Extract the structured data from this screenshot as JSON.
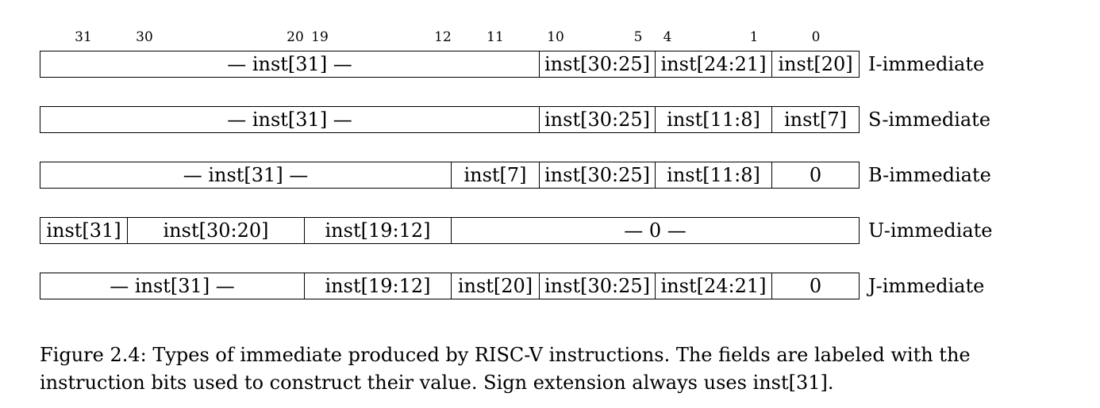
{
  "bit_numbers": [
    "31",
    "30",
    "20",
    "19",
    "12",
    "11",
    "10",
    "5",
    "4",
    "1",
    "0"
  ],
  "rows": [
    {
      "name": "i-immediate",
      "label": "I-immediate",
      "fields": [
        {
          "text": "— inst[31] —",
          "from": 31,
          "to": 11
        },
        {
          "text": "inst[30:25]",
          "from": 10,
          "to": 5
        },
        {
          "text": "inst[24:21]",
          "from": 4,
          "to": 1
        },
        {
          "text": "inst[20]",
          "from": 0,
          "to": 0
        }
      ]
    },
    {
      "name": "s-immediate",
      "label": "S-immediate",
      "fields": [
        {
          "text": "— inst[31] —",
          "from": 31,
          "to": 11
        },
        {
          "text": "inst[30:25]",
          "from": 10,
          "to": 5
        },
        {
          "text": "inst[11:8]",
          "from": 4,
          "to": 1
        },
        {
          "text": "inst[7]",
          "from": 0,
          "to": 0
        }
      ]
    },
    {
      "name": "b-immediate",
      "label": "B-immediate",
      "fields": [
        {
          "text": "— inst[31] —",
          "from": 31,
          "to": 12
        },
        {
          "text": "inst[7]",
          "from": 11,
          "to": 11
        },
        {
          "text": "inst[30:25]",
          "from": 10,
          "to": 5
        },
        {
          "text": "inst[11:8]",
          "from": 4,
          "to": 1
        },
        {
          "text": "0",
          "from": 0,
          "to": 0
        }
      ]
    },
    {
      "name": "u-immediate",
      "label": "U-immediate",
      "fields": [
        {
          "text": "inst[31]",
          "from": 31,
          "to": 31
        },
        {
          "text": "inst[30:20]",
          "from": 30,
          "to": 20
        },
        {
          "text": "inst[19:12]",
          "from": 19,
          "to": 12
        },
        {
          "text": "— 0 —",
          "from": 11,
          "to": 0
        }
      ]
    },
    {
      "name": "j-immediate",
      "label": "J-immediate",
      "fields": [
        {
          "text": "— inst[31] —",
          "from": 31,
          "to": 20
        },
        {
          "text": "inst[19:12]",
          "from": 19,
          "to": 12
        },
        {
          "text": "inst[20]",
          "from": 11,
          "to": 11
        },
        {
          "text": "inst[30:25]",
          "from": 10,
          "to": 5
        },
        {
          "text": "inst[24:21]",
          "from": 4,
          "to": 1
        },
        {
          "text": "0",
          "from": 0,
          "to": 0
        }
      ]
    }
  ],
  "caption": {
    "line1": "Figure 2.4: Types of immediate produced by RISC-V instructions. The fields are labeled with the",
    "line2": "instruction bits used to construct their value. Sign extension always uses inst[31]."
  }
}
